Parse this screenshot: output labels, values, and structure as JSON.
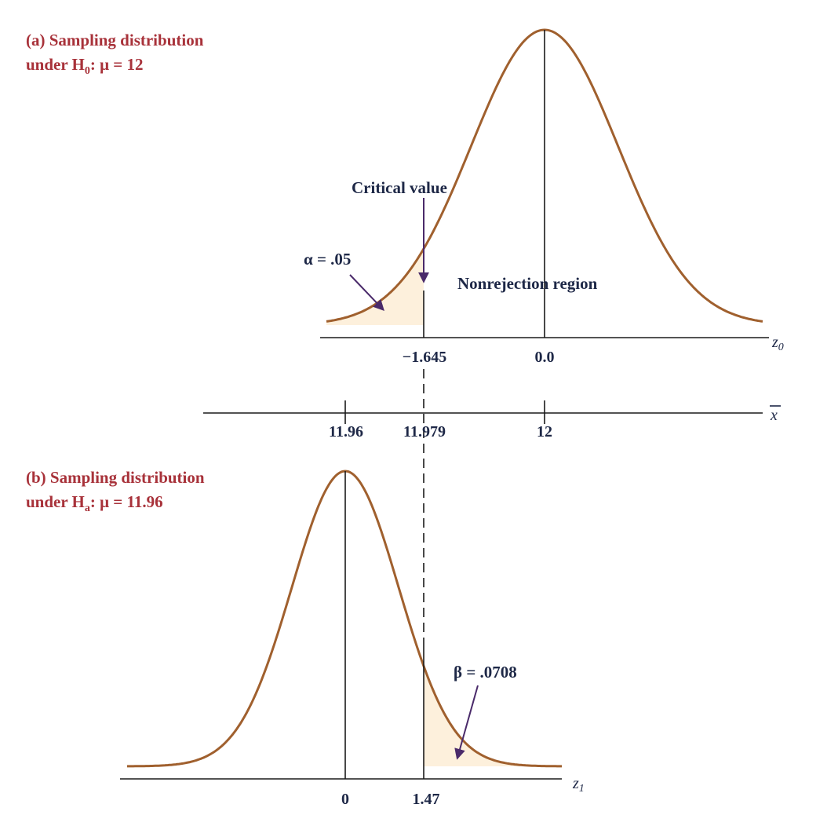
{
  "colors": {
    "curve": "#a0602e",
    "fill": "#fdf0dc",
    "title": "#a8323a",
    "text": "#1e2847",
    "arrow": "#4a2a6a"
  },
  "panel_a": {
    "title_line1": "(a) Sampling distribution",
    "title_line2_prefix": "under H",
    "title_line2_sub": "0",
    "title_line2_suffix": ":  μ = 12",
    "alpha_label": "α = .05",
    "critical_label": "Critical value",
    "nonrejection_label": "Nonrejection region",
    "axis_var": "z",
    "axis_var_sub": "0",
    "ticks": [
      "−1.645",
      "0.0"
    ]
  },
  "xbar_axis": {
    "axis_var": "x",
    "ticks": [
      "11.96",
      "11.979",
      "12"
    ]
  },
  "panel_b": {
    "title_line1": "(b) Sampling distribution",
    "title_line2_prefix": "under H",
    "title_line2_sub": "a",
    "title_line2_suffix": ": μ = 11.96",
    "beta_label": "β = .0708",
    "axis_var": "z",
    "axis_var_sub": "1",
    "ticks": [
      "0",
      "1.47"
    ]
  },
  "chart_data": [
    {
      "type": "area",
      "title": "",
      "distribution": "normal",
      "mean_z": 0.0,
      "critical_z": -1.645,
      "shaded_region": "left tail",
      "shaded_area": 0.05,
      "x_variable": "z0",
      "x_ticks": [
        -1.645,
        0.0
      ],
      "xbar_ticks": [
        11.96,
        11.979,
        12
      ],
      "hypothesized_mean": 12
    },
    {
      "type": "area",
      "title": "",
      "distribution": "normal",
      "mean_z": 0,
      "critical_z": 1.47,
      "shaded_region": "right tail",
      "shaded_area": 0.0708,
      "x_variable": "z1",
      "x_ticks": [
        0,
        1.47
      ],
      "alternative_mean": 11.96
    }
  ]
}
